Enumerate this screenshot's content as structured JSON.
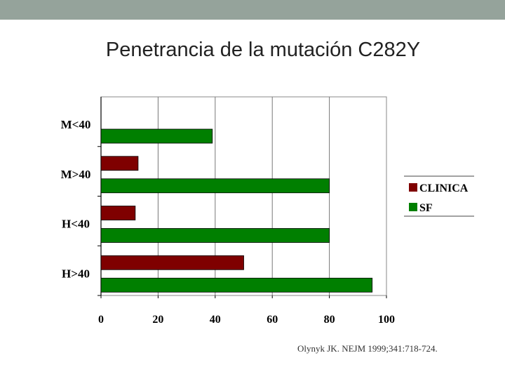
{
  "slide": {
    "title": "Penetrancia de la mutación C282Y",
    "citation": "Olynyk JK. NEJM 1999;341:718-724."
  },
  "chart_data": {
    "type": "bar",
    "orientation": "horizontal",
    "categories": [
      "M<40",
      "M>40",
      "H<40",
      "H>40"
    ],
    "series": [
      {
        "name": "CLINICA",
        "color": "#7f0000",
        "values": [
          0,
          13,
          12,
          50
        ]
      },
      {
        "name": "SF",
        "color": "#007f00",
        "values": [
          39,
          80,
          80,
          95
        ]
      }
    ],
    "xlim": [
      0,
      100
    ],
    "xticks": [
      0,
      20,
      40,
      60,
      80,
      100
    ],
    "grid": true,
    "legend": "right"
  }
}
